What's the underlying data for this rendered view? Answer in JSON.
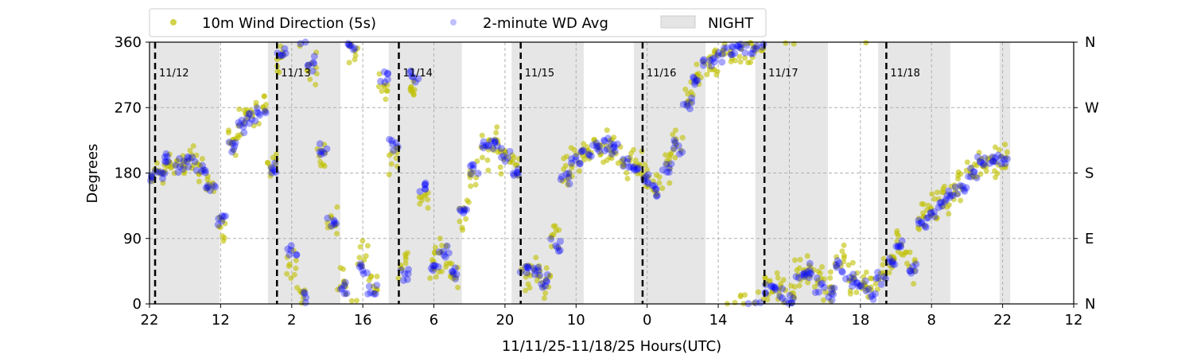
{
  "chart_data": {
    "type": "scatter",
    "xlabel": "11/11/25-11/18/25  Hours(UTC)",
    "ylabel": "Degrees",
    "ylim": [
      0,
      360
    ],
    "xlim_hours": [
      0,
      182
    ],
    "x_tick_labels": [
      "22",
      "12",
      "2",
      "16",
      "6",
      "20",
      "10",
      "0",
      "14",
      "4",
      "18",
      "8",
      "22",
      "12"
    ],
    "x_tick_step_hours": 14,
    "y_ticks": [
      0,
      90,
      180,
      270,
      360
    ],
    "y_tick_labels": [
      "0",
      "90",
      "180",
      "270",
      "360"
    ],
    "right_axis_labels": [
      "N",
      "E",
      "S",
      "W",
      "N"
    ],
    "grid": true,
    "legend_placement": "top-center",
    "legend": [
      "10m Wind Direction (5s)",
      "2-minute WD Avg",
      "NIGHT"
    ],
    "day_markers": [
      {
        "label": "11/12",
        "hour": 1.1
      },
      {
        "label": "11/13",
        "hour": 25.1
      },
      {
        "label": "11/14",
        "hour": 49.1
      },
      {
        "label": "11/15",
        "hour": 73.1
      },
      {
        "label": "11/16",
        "hour": 97.1
      },
      {
        "label": "11/17",
        "hour": 121.1
      },
      {
        "label": "11/18",
        "hour": 145.1
      }
    ],
    "night_periods_hours": [
      [
        0,
        13.8
      ],
      [
        23.3,
        37.6
      ],
      [
        47.1,
        61.5
      ],
      [
        71.3,
        85.5
      ],
      [
        95.4,
        109.5
      ],
      [
        119.3,
        133.6
      ],
      [
        143.5,
        157.7
      ],
      [
        167.4,
        169.5
      ]
    ],
    "x_step_hours": 2,
    "series": [
      {
        "name": "10m Wind Direction (5s)",
        "color": "#bfbf00",
        "spread": 28,
        "values": [
          175,
          185,
          195,
          190,
          195,
          190,
          160,
          110,
          220,
          250,
          260,
          270,
          190,
          340,
          60,
          10,
          320,
          200,
          120,
          30,
          350,
          60,
          20,
          300,
          200,
          50,
          300,
          150,
          60,
          70,
          40,
          120,
          180,
          210,
          220,
          200,
          190,
          40,
          50,
          30,
          90,
          180,
          200,
          210,
          215,
          220,
          210,
          195,
          190,
          175,
          160,
          190,
          220,
          280,
          310,
          330,
          340,
          350,
          355,
          350,
          355,
          30,
          20,
          15,
          40,
          50,
          30,
          20,
          60,
          40,
          30,
          20,
          40,
          60,
          90,
          50,
          120,
          130,
          140,
          150,
          160,
          180,
          195,
          200,
          200
        ]
      },
      {
        "name": "2-minute WD Avg",
        "color": "#0000ff",
        "spread": 12,
        "values": [
          170,
          180,
          195,
          190,
          195,
          185,
          160,
          115,
          215,
          245,
          255,
          265,
          185,
          345,
          70,
          5,
          330,
          210,
          110,
          20,
          355,
          50,
          15,
          310,
          220,
          40,
          310,
          160,
          50,
          75,
          45,
          130,
          185,
          215,
          220,
          205,
          185,
          45,
          45,
          30,
          80,
          175,
          200,
          210,
          215,
          220,
          210,
          195,
          185,
          175,
          155,
          185,
          215,
          275,
          305,
          330,
          340,
          350,
          355,
          350,
          355,
          20,
          15,
          10,
          35,
          45,
          25,
          15,
          50,
          35,
          25,
          15,
          35,
          55,
          80,
          45,
          110,
          125,
          140,
          150,
          160,
          180,
          195,
          200,
          200
        ]
      }
    ]
  }
}
